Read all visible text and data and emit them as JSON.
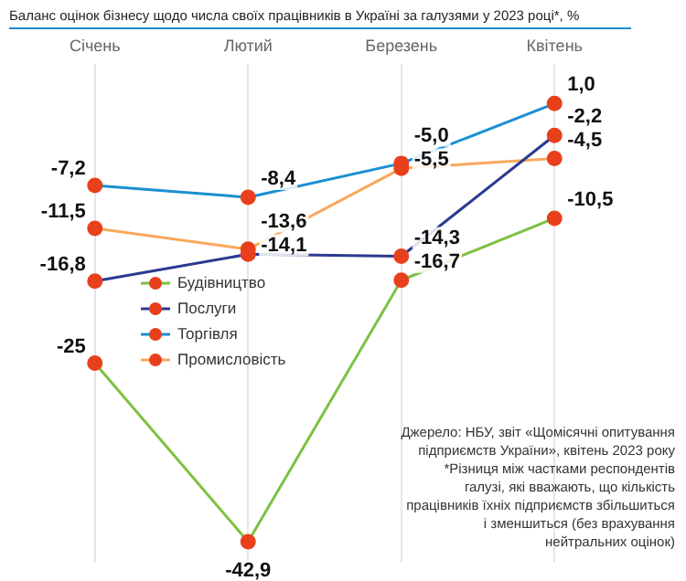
{
  "chart_data": {
    "type": "line",
    "title": "Баланс оцінок бізнесу щодо числа своїх працівників в Україні за галузями у 2023 році*, %",
    "categories": [
      "Січень",
      "Лютий",
      "Березень",
      "Квітень"
    ],
    "series": [
      {
        "name": "Будівництво",
        "color": "#7dc242",
        "values": [
          -25,
          -42.9,
          -16.7,
          -10.5
        ],
        "value_labels": [
          "-25",
          "-42,9",
          "-16,7",
          "-10,5"
        ]
      },
      {
        "name": "Послуги",
        "color": "#2b3990",
        "values": [
          -16.8,
          -14.1,
          -14.3,
          -2.2
        ],
        "value_labels": [
          "-16,8",
          "-14,1",
          "-14,3",
          "-2,2"
        ]
      },
      {
        "name": "Торгівля",
        "color": "#1b8fd2",
        "values": [
          -7.2,
          -8.4,
          -5.0,
          1.0
        ],
        "value_labels": [
          "-7,2",
          "-8,4",
          "-5,0",
          "1,0"
        ]
      },
      {
        "name": "Промисловість",
        "color": "#f9a85b",
        "values": [
          -11.5,
          -13.6,
          -5.5,
          -4.5
        ],
        "value_labels": [
          "-11,5",
          "-13,6",
          "-5,5",
          "-4,5"
        ]
      }
    ],
    "annotations": [
      "Джерело: НБУ, звіт «Щомісячні опитування підприємств України», квітень 2023 року",
      "*Різниця між частками респондентів галузі, які вважають, що кількість працівників їхніх підприємств збільшиться і зменшиться (без врахування нейтральних оцінок)"
    ],
    "grid": "x",
    "legend": "left",
    "marker": "circle",
    "line_style": "solid",
    "tick_labels": "x"
  }
}
